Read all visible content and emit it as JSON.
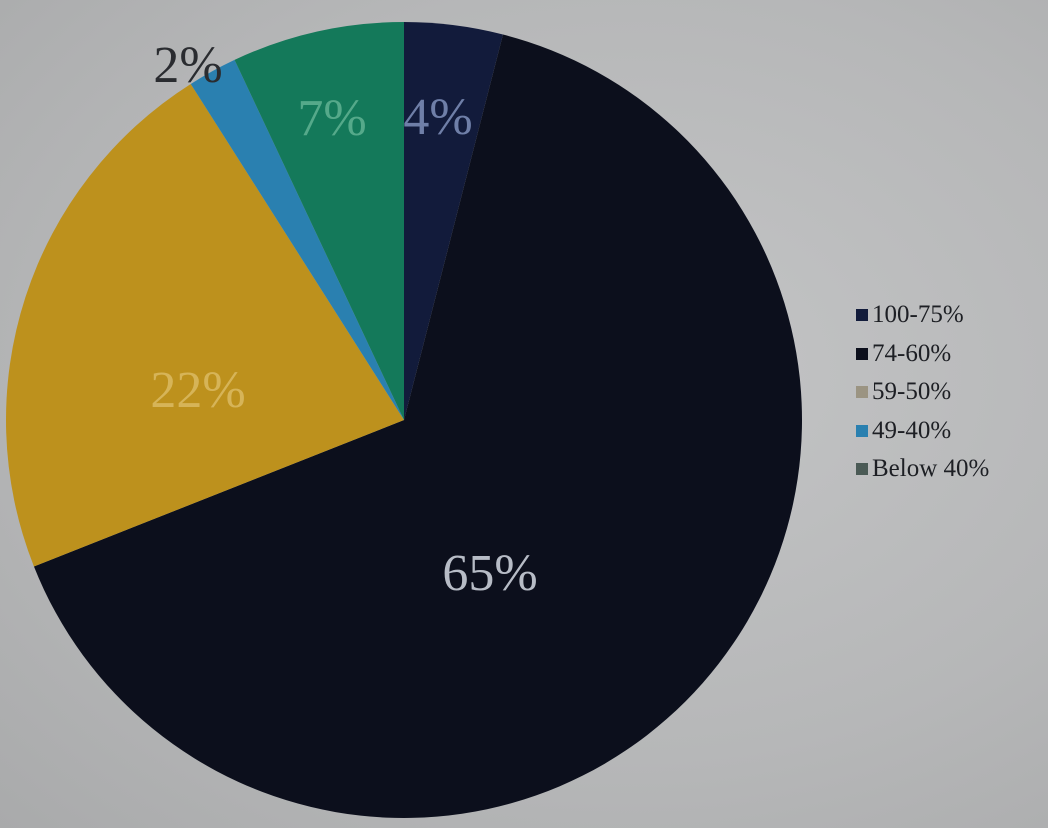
{
  "chart_data": {
    "type": "pie",
    "title": "",
    "slices": [
      {
        "label": "100-75%",
        "value": 4,
        "display": "4%",
        "color": "#121b3b",
        "label_color": "#6f7fa8"
      },
      {
        "label": "74-60%",
        "value": 65,
        "display": "65%",
        "color": "#0c0f1c",
        "label_color": "#b7bcc6"
      },
      {
        "label": "59-50%",
        "value": 22,
        "display": "22%",
        "color": "#bd911d",
        "label_color": "#d6b458"
      },
      {
        "label": "49-40%",
        "value": 2,
        "display": "2%",
        "color": "#2a80b0",
        "label_color": "#2a2c30"
      },
      {
        "label": "Below 40%",
        "value": 7,
        "display": "7%",
        "color": "#14795a",
        "label_color": "#55a98a"
      }
    ],
    "start_angle_deg": 0,
    "direction": "clockwise",
    "legend_position": "right",
    "legend": [
      {
        "text": "100-75%",
        "color": "#121b3b"
      },
      {
        "text": "74-60%",
        "color": "#0c0f1c"
      },
      {
        "text": "59-50%",
        "color": "#9b9482"
      },
      {
        "text": "49-40%",
        "color": "#2a80b0"
      },
      {
        "text": "Below 40%",
        "color": "#4a5a55"
      }
    ]
  }
}
